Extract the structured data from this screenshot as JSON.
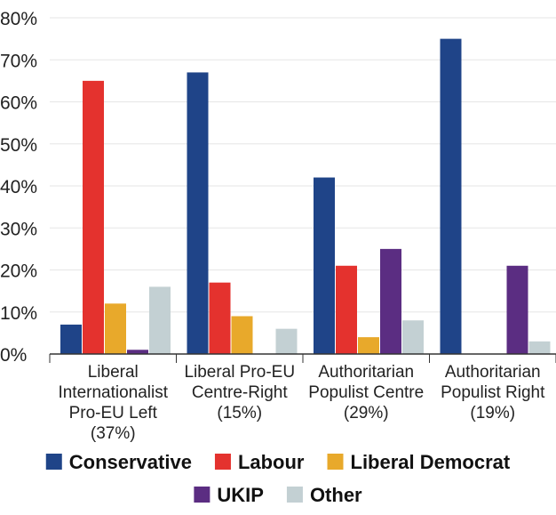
{
  "chart_data": {
    "type": "bar",
    "title": "",
    "xlabel": "",
    "ylabel": "",
    "ylim": [
      0,
      80
    ],
    "yticks": [
      "0%",
      "10%",
      "20%",
      "30%",
      "40%",
      "50%",
      "60%",
      "70%",
      "80%"
    ],
    "grid": true,
    "legend_position": "bottom",
    "categories": [
      [
        "Liberal",
        "Internationalist",
        "Pro-EU Left",
        "(37%)"
      ],
      [
        "Liberal Pro-EU",
        "Centre-Right",
        "(15%)"
      ],
      [
        "Authoritarian",
        "Populist Centre",
        "(29%)"
      ],
      [
        "Authoritarian",
        "Populist Right",
        "(19%)"
      ]
    ],
    "series": [
      {
        "name": "Conservative",
        "color": "#1f4488",
        "values": [
          7,
          67,
          42,
          75
        ]
      },
      {
        "name": "Labour",
        "color": "#e4322e",
        "values": [
          65,
          17,
          21,
          0
        ]
      },
      {
        "name": "Liberal Democrat",
        "color": "#e8a92b",
        "values": [
          12,
          9,
          4,
          0
        ]
      },
      {
        "name": "UKIP",
        "color": "#5b2d82",
        "values": [
          1,
          0,
          25,
          21
        ]
      },
      {
        "name": "Other",
        "color": "#c3d0d3",
        "values": [
          16,
          6,
          8,
          3
        ]
      }
    ]
  }
}
